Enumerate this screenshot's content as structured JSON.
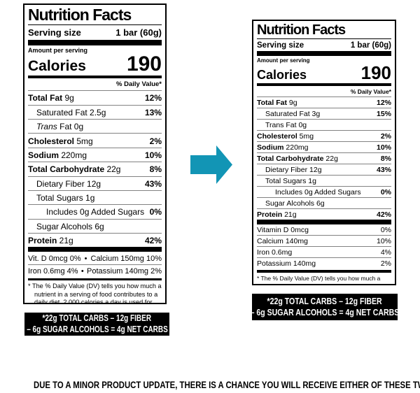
{
  "arrow": {
    "color": "#1295B5",
    "direction": "right"
  },
  "disclaimer": "DUE TO A MINOR PRODUCT UPDATE, THERE IS A CHANCE YOU WILL RECEIVE EITHER OF THESE TWO PRODUCTS",
  "label_old": {
    "title": "Nutrition Facts",
    "serving_size_label": "Serving size",
    "serving_size_value": "1 bar (60g)",
    "amount_per_serving": "Amount per serving",
    "calories_label": "Calories",
    "calories_value": "190",
    "daily_value_header": "% Daily Value*",
    "rows": [
      {
        "lead": "Total Fat",
        "lead_style": "bold",
        "rest": "9g",
        "dv": "12%",
        "dv_bold": true,
        "indent": 0
      },
      {
        "lead": "",
        "rest": "Saturated Fat 2.5g",
        "dv": "13%",
        "dv_bold": true,
        "indent": 1
      },
      {
        "lead": "Trans",
        "lead_style": "italic",
        "rest": " Fat 0g",
        "dv": "",
        "dv_bold": false,
        "indent": 1
      },
      {
        "lead": "Cholesterol",
        "lead_style": "bold",
        "rest": "5mg",
        "dv": "2%",
        "dv_bold": true,
        "indent": 0
      },
      {
        "lead": "Sodium",
        "lead_style": "bold",
        "rest": "220mg",
        "dv": "10%",
        "dv_bold": true,
        "indent": 0
      },
      {
        "lead": "Total Carbohydrate",
        "lead_style": "bold",
        "rest": "22g",
        "dv": "8%",
        "dv_bold": true,
        "indent": 0
      },
      {
        "lead": "",
        "rest": "Dietary Fiber 12g",
        "dv": "43%",
        "dv_bold": true,
        "indent": 1
      },
      {
        "lead": "",
        "rest": "Total Sugars 1g",
        "dv": "",
        "dv_bold": false,
        "indent": 1
      },
      {
        "lead": "",
        "rest": "Includes 0g Added Sugars",
        "dv": "0%",
        "dv_bold": true,
        "indent": 2
      },
      {
        "lead": "",
        "rest": "Sugar Alcohols 6g",
        "dv": "",
        "dv_bold": false,
        "indent": 1
      },
      {
        "lead": "Protein",
        "lead_style": "bold",
        "rest": "21g",
        "dv": "42%",
        "dv_bold": true,
        "indent": 0
      }
    ],
    "micros": [
      {
        "left": "Vit. D 0mcg 0%",
        "sep": "•",
        "right": "Calcium 150mg 10%"
      },
      {
        "left": "Iron 0.6mg 4%",
        "sep": "•",
        "right": "Potassium 140mg 2%"
      }
    ],
    "footnote": "* The % Daily Value (DV) tells you how much a nutrient in a serving of food contributes to a daily diet. 2,000 calories a day is used for general nutrition advice.",
    "net_carbs_line1": "*22g TOTAL CARBS – 12g FIBER",
    "net_carbs_line2": "– 6g SUGAR ALCOHOLS = 4g NET CARBS"
  },
  "label_new": {
    "title": "Nutrition Facts",
    "serving_size_label": "Serving size",
    "serving_size_value": "1 bar (60g)",
    "amount_per_serving": "Amount per serving",
    "calories_label": "Calories",
    "calories_value": "190",
    "daily_value_header": "% Daily Value*",
    "rows": [
      {
        "lead": "Total Fat",
        "lead_style": "bold",
        "rest": "9g",
        "dv": "12%",
        "dv_bold": true,
        "indent": 0
      },
      {
        "lead": "",
        "rest": "Saturated Fat 3g",
        "dv": "15%",
        "dv_bold": true,
        "indent": 1
      },
      {
        "lead": "",
        "rest": "Trans Fat 0g",
        "dv": "",
        "dv_bold": false,
        "indent": 1
      },
      {
        "lead": "Cholesterol",
        "lead_style": "bold",
        "rest": "5mg",
        "dv": "2%",
        "dv_bold": true,
        "indent": 0
      },
      {
        "lead": "Sodium",
        "lead_style": "bold",
        "rest": "220mg",
        "dv": "10%",
        "dv_bold": true,
        "indent": 0
      },
      {
        "lead": "Total Carbohydrate",
        "lead_style": "bold",
        "rest": "22g",
        "dv": "8%",
        "dv_bold": true,
        "indent": 0
      },
      {
        "lead": "",
        "rest": "Dietary Fiber 12g",
        "dv": "43%",
        "dv_bold": true,
        "indent": 1
      },
      {
        "lead": "",
        "rest": "Total Sugars 1g",
        "dv": "",
        "dv_bold": false,
        "indent": 1
      },
      {
        "lead": "",
        "rest": "Includes 0g Added Sugars",
        "dv": "0%",
        "dv_bold": true,
        "indent": 2
      },
      {
        "lead": "",
        "rest": "Sugar Alcohols 6g",
        "dv": "",
        "dv_bold": false,
        "indent": 1
      },
      {
        "lead": "Protein",
        "lead_style": "bold",
        "rest": "21g",
        "dv": "42%",
        "dv_bold": true,
        "indent": 0
      }
    ],
    "micro_rows": [
      {
        "lead": "",
        "rest": "Vitamin D 0mcg",
        "dv": "0%",
        "dv_bold": false,
        "indent": 0
      },
      {
        "lead": "",
        "rest": "Calcium 140mg",
        "dv": "10%",
        "dv_bold": false,
        "indent": 0
      },
      {
        "lead": "",
        "rest": "Iron 0.6mg",
        "dv": "4%",
        "dv_bold": false,
        "indent": 0
      },
      {
        "lead": "",
        "rest": "Potassium 140mg",
        "dv": "2%",
        "dv_bold": false,
        "indent": 0
      }
    ],
    "footnote": "* The % Daily Value (DV) tells you how much a nutrient in a serving of food contributes to a daily diet. 2,000 calories a day is used for general nutrition advice.",
    "net_carbs_line1": "*22g TOTAL CARBS – 12g FIBER",
    "net_carbs_line2": "– 6g SUGAR ALCOHOLS = 4g NET CARBS"
  }
}
